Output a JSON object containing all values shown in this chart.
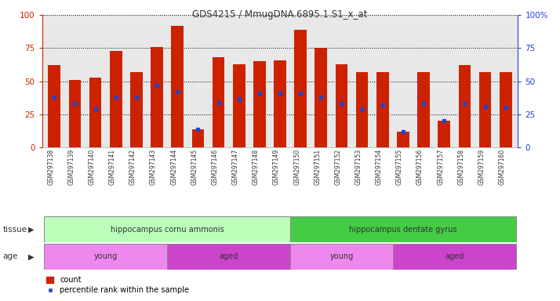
{
  "title": "GDS4215 / MmugDNA.6895.1.S1_x_at",
  "samples": [
    "GSM297138",
    "GSM297139",
    "GSM297140",
    "GSM297141",
    "GSM297142",
    "GSM297143",
    "GSM297144",
    "GSM297145",
    "GSM297146",
    "GSM297147",
    "GSM297148",
    "GSM297149",
    "GSM297150",
    "GSM297151",
    "GSM297152",
    "GSM297153",
    "GSM297154",
    "GSM297155",
    "GSM297156",
    "GSM297157",
    "GSM297158",
    "GSM297159",
    "GSM297160"
  ],
  "bar_heights": [
    62,
    51,
    53,
    73,
    57,
    76,
    92,
    14,
    68,
    63,
    65,
    66,
    89,
    75,
    63,
    57,
    57,
    12,
    57,
    20,
    62,
    57,
    57
  ],
  "blue_pos": [
    38,
    33,
    29,
    38,
    38,
    47,
    42,
    14,
    34,
    37,
    41,
    41,
    41,
    38,
    33,
    29,
    32,
    12,
    33,
    20,
    33,
    31,
    30
  ],
  "bar_color": "#cc2200",
  "blue_color": "#2244cc",
  "plot_bg_color": "#e8e8e8",
  "fig_bg_color": "#ffffff",
  "grid_color": "#000000",
  "ylim": [
    0,
    100
  ],
  "tissue_groups": [
    {
      "label": "hippocampus cornu ammonis",
      "start": 0,
      "end": 12,
      "color": "#bbffbb"
    },
    {
      "label": "hippocampus dentate gyrus",
      "start": 12,
      "end": 23,
      "color": "#44cc44"
    }
  ],
  "age_groups": [
    {
      "label": "young",
      "start": 0,
      "end": 6,
      "color": "#ee88ee"
    },
    {
      "label": "aged",
      "start": 6,
      "end": 12,
      "color": "#cc44cc"
    },
    {
      "label": "young",
      "start": 12,
      "end": 17,
      "color": "#ee88ee"
    },
    {
      "label": "aged",
      "start": 17,
      "end": 23,
      "color": "#cc44cc"
    }
  ],
  "tissue_label": "tissue",
  "age_label": "age",
  "legend_count": "count",
  "legend_pct": "percentile rank within the sample",
  "left_axis_color": "#cc2200",
  "right_axis_color": "#2244cc",
  "yticks": [
    0,
    25,
    50,
    75,
    100
  ]
}
